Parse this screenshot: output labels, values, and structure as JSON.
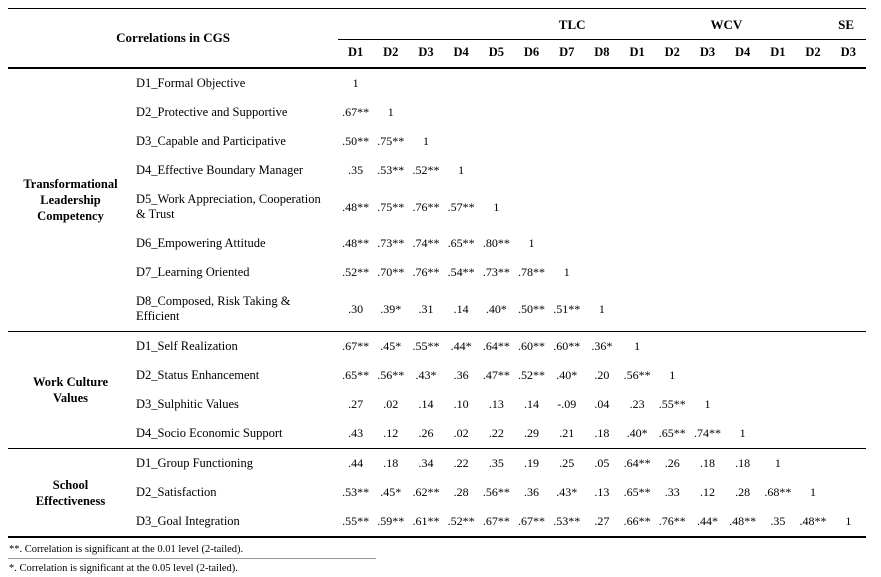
{
  "colors": {
    "background": "#ffffff",
    "text": "#000000",
    "rule": "#000000"
  },
  "table": {
    "title": "Correlations in CGS",
    "column_groups": [
      {
        "label": "TLC",
        "columns": [
          "D1",
          "D2",
          "D3",
          "D4",
          "D5",
          "D6",
          "D7",
          "D8"
        ]
      },
      {
        "label": "WCV",
        "columns": [
          "D1",
          "D2",
          "D3",
          "D4"
        ]
      },
      {
        "label": "SE",
        "columns": [
          "D1",
          "D2",
          "D3"
        ]
      }
    ],
    "row_groups": [
      {
        "label": "Transformational Leadership Competency",
        "rows": [
          {
            "label": "D1_Formal Objective",
            "values": [
              "1"
            ]
          },
          {
            "label": "D2_Protective and Supportive",
            "values": [
              ".67**",
              "1"
            ]
          },
          {
            "label": "D3_Capable and Participative",
            "values": [
              ".50**",
              ".75**",
              "1"
            ]
          },
          {
            "label": "D4_Effective Boundary Manager",
            "values": [
              ".35",
              ".53**",
              ".52**",
              "1"
            ]
          },
          {
            "label": "D5_Work Appreciation, Cooperation & Trust",
            "values": [
              ".48**",
              ".75**",
              ".76**",
              ".57**",
              "1"
            ]
          },
          {
            "label": "D6_Empowering Attitude",
            "values": [
              ".48**",
              ".73**",
              ".74**",
              ".65**",
              ".80**",
              "1"
            ]
          },
          {
            "label": "D7_Learning Oriented",
            "values": [
              ".52**",
              ".70**",
              ".76**",
              ".54**",
              ".73**",
              ".78**",
              "1"
            ]
          },
          {
            "label": "D8_Composed, Risk Taking & Efficient",
            "values": [
              ".30",
              ".39*",
              ".31",
              ".14",
              ".40*",
              ".50**",
              ".51**",
              "1"
            ]
          }
        ]
      },
      {
        "label": "Work Culture Values",
        "rows": [
          {
            "label": "D1_Self Realization",
            "values": [
              ".67**",
              ".45*",
              ".55**",
              ".44*",
              ".64**",
              ".60**",
              ".60**",
              ".36*",
              "1"
            ]
          },
          {
            "label": "D2_Status Enhancement",
            "values": [
              ".65**",
              ".56**",
              ".43*",
              ".36",
              ".47**",
              ".52**",
              ".40*",
              ".20",
              ".56**",
              "1"
            ]
          },
          {
            "label": "D3_Sulphitic Values",
            "values": [
              ".27",
              ".02",
              ".14",
              ".10",
              ".13",
              ".14",
              "-.09",
              ".04",
              ".23",
              ".55**",
              "1"
            ]
          },
          {
            "label": "D4_Socio Economic Support",
            "values": [
              ".43",
              ".12",
              ".26",
              ".02",
              ".22",
              ".29",
              ".21",
              ".18",
              ".40*",
              ".65**",
              ".74**",
              "1"
            ]
          }
        ]
      },
      {
        "label": "School Effectiveness",
        "rows": [
          {
            "label": "D1_Group Functioning",
            "values": [
              ".44",
              ".18",
              ".34",
              ".22",
              ".35",
              ".19",
              ".25",
              ".05",
              ".64**",
              ".26",
              ".18",
              ".18",
              "1"
            ]
          },
          {
            "label": "D2_Satisfaction",
            "values": [
              ".53**",
              ".45*",
              ".62**",
              ".28",
              ".56**",
              ".36",
              ".43*",
              ".13",
              ".65**",
              ".33",
              ".12",
              ".28",
              ".68**",
              "1"
            ]
          },
          {
            "label": "D3_Goal Integration",
            "values": [
              ".55**",
              ".59**",
              ".61**",
              ".52**",
              ".67**",
              ".67**",
              ".53**",
              ".27",
              ".66**",
              ".76**",
              ".44*",
              ".48**",
              ".35",
              ".48**",
              "1"
            ]
          }
        ]
      }
    ]
  },
  "footnotes": [
    "**. Correlation is significant at the 0.01 level (2-tailed).",
    "*. Correlation is significant at the 0.05 level (2-tailed)."
  ]
}
